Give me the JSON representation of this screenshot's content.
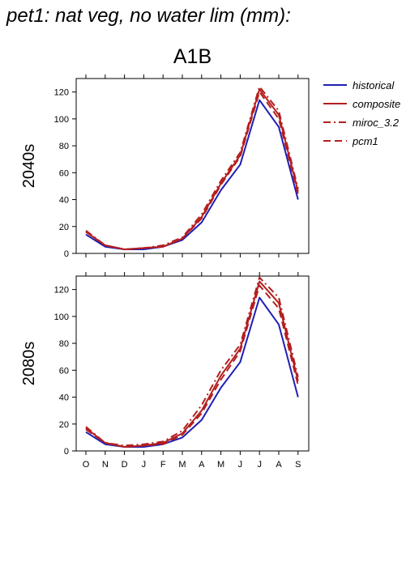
{
  "figure": {
    "title": "pet1: nat veg, no water lim (mm):",
    "scenario": "A1B"
  },
  "colors": {
    "historical": "#1f1fb4",
    "scenario": "#b41f1f"
  },
  "chart_data": [
    {
      "type": "line",
      "panel_label": "2040s",
      "categories": [
        "O",
        "N",
        "D",
        "J",
        "F",
        "M",
        "A",
        "M",
        "J",
        "J",
        "A",
        "S"
      ],
      "ylim": [
        0,
        130
      ],
      "yticks": [
        0,
        20,
        40,
        60,
        80,
        100,
        120
      ],
      "grid": false,
      "legend": "right",
      "series": [
        {
          "name": "historical",
          "style": "solid",
          "color": "#1f1fb4",
          "values": [
            14,
            5,
            3,
            3,
            5,
            10,
            23,
            47,
            66,
            114,
            94,
            40
          ]
        },
        {
          "name": "composite",
          "style": "solid",
          "color": "#b41f1f",
          "values": [
            16,
            6,
            3,
            4,
            5,
            11,
            27,
            52,
            73,
            122,
            103,
            46
          ]
        },
        {
          "name": "miroc_3.2",
          "style": "dashdot",
          "color": "#b41f1f",
          "values": [
            17,
            6,
            3,
            4,
            6,
            12,
            29,
            54,
            75,
            124,
            106,
            48
          ]
        },
        {
          "name": "pcm1",
          "style": "dashed",
          "color": "#b41f1f",
          "values": [
            16,
            6,
            3,
            4,
            5,
            11,
            26,
            51,
            72,
            120,
            100,
            44
          ]
        }
      ]
    },
    {
      "type": "line",
      "panel_label": "2080s",
      "categories": [
        "O",
        "N",
        "D",
        "J",
        "F",
        "M",
        "A",
        "M",
        "J",
        "J",
        "A",
        "S"
      ],
      "ylim": [
        0,
        130
      ],
      "yticks": [
        0,
        20,
        40,
        60,
        80,
        100,
        120
      ],
      "grid": false,
      "series": [
        {
          "name": "historical",
          "style": "solid",
          "color": "#1f1fb4",
          "values": [
            14,
            5,
            3,
            3,
            5,
            10,
            23,
            47,
            66,
            114,
            94,
            40
          ]
        },
        {
          "name": "composite",
          "style": "solid",
          "color": "#b41f1f",
          "values": [
            17,
            6,
            3,
            4,
            6,
            13,
            30,
            56,
            76,
            126,
            110,
            52
          ]
        },
        {
          "name": "miroc_3.2",
          "style": "dashdot",
          "color": "#b41f1f",
          "values": [
            18,
            6,
            4,
            5,
            7,
            15,
            34,
            60,
            79,
            129,
            114,
            55
          ]
        },
        {
          "name": "pcm1",
          "style": "dashed",
          "color": "#b41f1f",
          "values": [
            16,
            6,
            3,
            4,
            5,
            12,
            28,
            53,
            74,
            123,
            106,
            49
          ]
        }
      ]
    }
  ]
}
